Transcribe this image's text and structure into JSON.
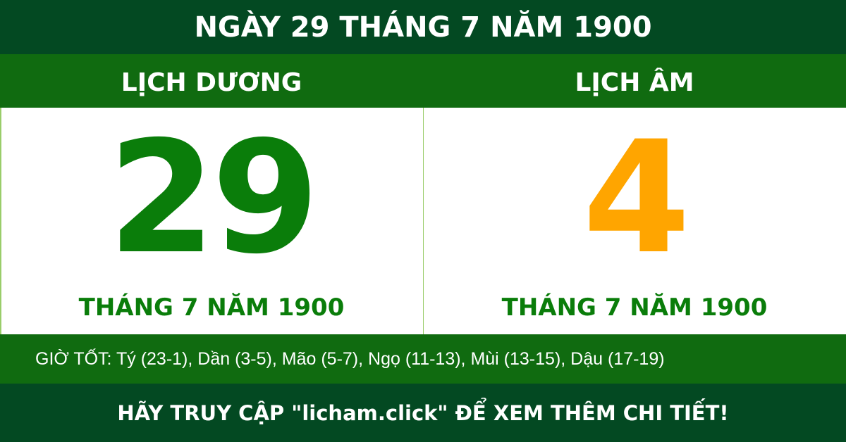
{
  "title": "NGÀY 29 THÁNG 7 NĂM 1900",
  "solar": {
    "heading": "LỊCH DƯƠNG",
    "day": "29",
    "month_year": "THÁNG 7 NĂM 1900",
    "color": "#0a7d0a"
  },
  "lunar": {
    "heading": "LỊCH ÂM",
    "day": "4",
    "month_year": "THÁNG 7 NĂM 1900",
    "color": "#ffa500"
  },
  "good_hours": "GIỜ TỐT: Tý (23-1), Dần (3-5), Mão (5-7), Ngọ (11-13), Mùi (13-15), Dậu (17-19)",
  "footer": "HÃY TRUY CẬP \"licham.click\" ĐỂ XEM THÊM CHI TIẾT!",
  "colors": {
    "dark_green": "#034922",
    "green": "#106b10"
  }
}
